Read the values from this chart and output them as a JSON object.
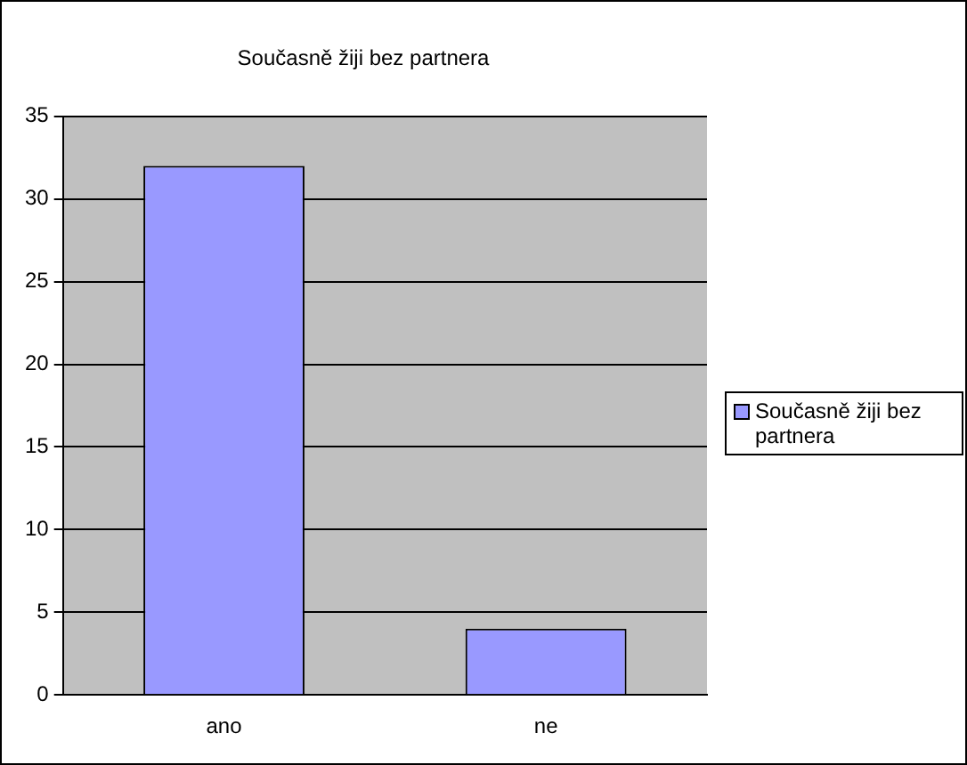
{
  "chart_data": {
    "type": "bar",
    "title": "Současně žiji bez partnera",
    "categories": [
      "ano",
      "ne"
    ],
    "series": [
      {
        "name": "Současně žiji bez partnera",
        "color": "#9999ff",
        "values": [
          32,
          4
        ]
      }
    ],
    "ylim": [
      0,
      35
    ],
    "yticks": [
      0,
      5,
      10,
      15,
      20,
      25,
      30,
      35
    ],
    "grid": "y",
    "legend": "right"
  }
}
